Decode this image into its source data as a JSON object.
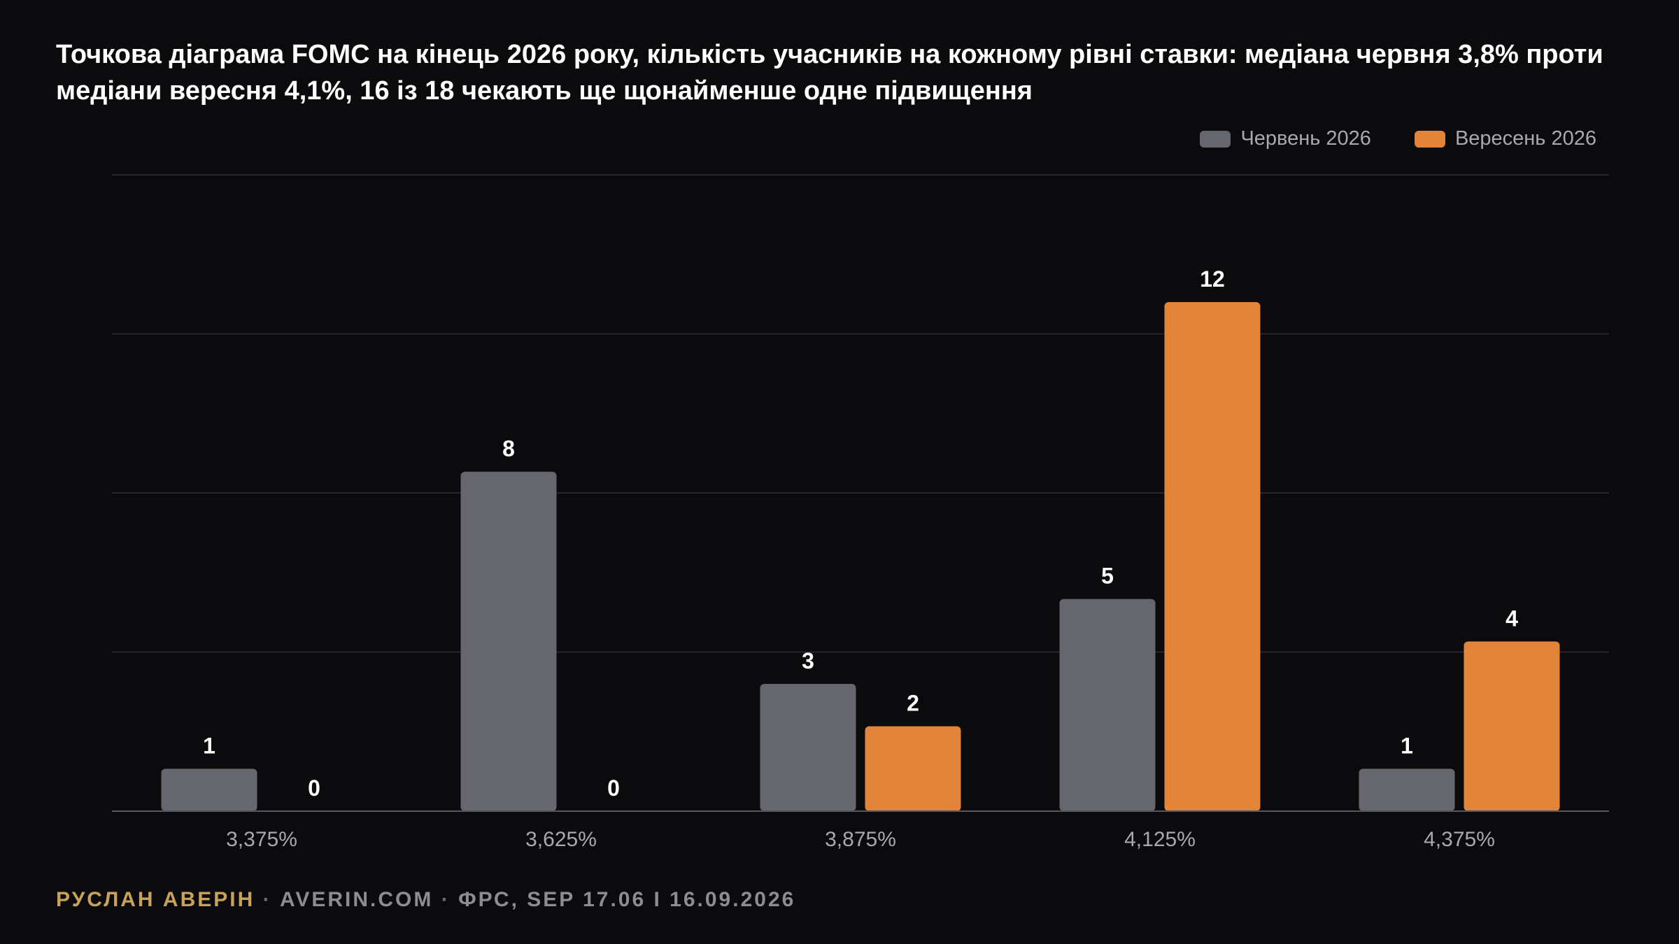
{
  "title": "Точкова діаграма FOMC на кінець 2026 року, кількість учасників на кожному рівні ставки: медіана червня 3,8% проти медіани вересня 4,1%, 16 із 18 чекають ще щонайменше одне підвищення",
  "colors": {
    "background": "#0b0b0e",
    "june": "#66666e",
    "september": "#e2853a",
    "grid": "#26262b",
    "axis": "#55555c",
    "tick_text": "#a8a8ae",
    "author": "#c9a25a",
    "footer": "#8c8c92"
  },
  "legend": {
    "items": [
      {
        "label": "Червень 2026",
        "color": "#66666e"
      },
      {
        "label": "Вересень 2026",
        "color": "#e2853a"
      }
    ]
  },
  "chart_data": {
    "type": "bar",
    "categories": [
      "3,375%",
      "3,625%",
      "3,875%",
      "4,125%",
      "4,375%"
    ],
    "series": [
      {
        "name": "Червень 2026",
        "values": [
          1,
          8,
          3,
          5,
          1
        ]
      },
      {
        "name": "Вересень 2026",
        "values": [
          0,
          0,
          2,
          12,
          4
        ]
      }
    ],
    "ylim": [
      0,
      15
    ],
    "gridlines": [
      0,
      3.75,
      7.5,
      11.25,
      15
    ],
    "grid": true,
    "legend_position": "top-right",
    "data_labels": true,
    "xlabel": "",
    "ylabel": ""
  },
  "footer": {
    "author": "РУСЛАН АВЕРІН",
    "sep1": " · ",
    "site": "AVERIN.COM",
    "sep2": " · ",
    "source": "ФРС, SEP 17.06 І 16.09.2026"
  }
}
